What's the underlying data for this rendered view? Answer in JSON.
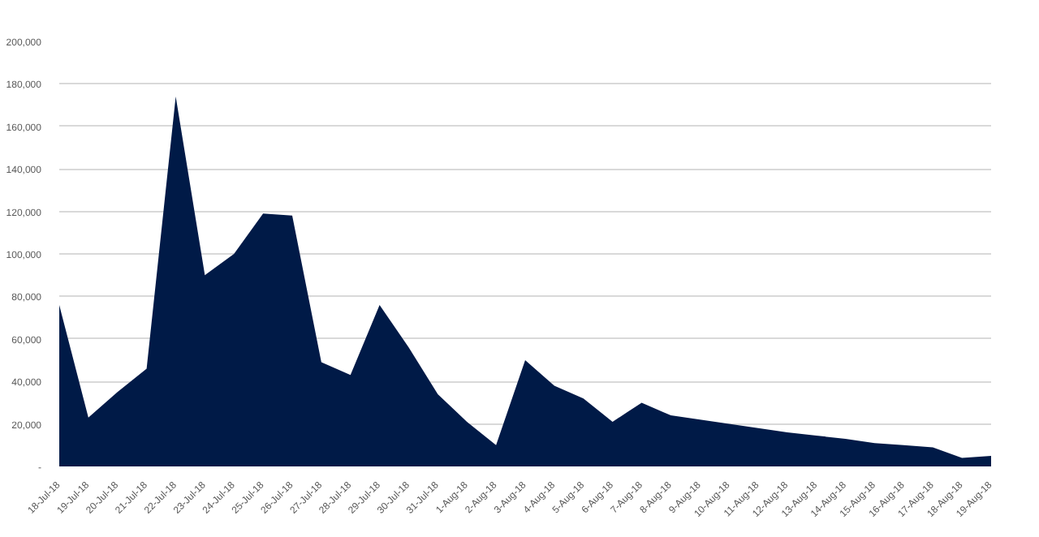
{
  "chart_data": {
    "type": "area",
    "categories": [
      "18-Jul-18",
      "19-Jul-18",
      "20-Jul-18",
      "21-Jul-18",
      "22-Jul-18",
      "23-Jul-18",
      "24-Jul-18",
      "25-Jul-18",
      "26-Jul-18",
      "27-Jul-18",
      "28-Jul-18",
      "29-Jul-18",
      "30-Jul-18",
      "31-Jul-18",
      "1-Aug-18",
      "2-Aug-18",
      "3-Aug-18",
      "4-Aug-18",
      "5-Aug-18",
      "6-Aug-18",
      "7-Aug-18",
      "8-Aug-18",
      "9-Aug-18",
      "10-Aug-18",
      "11-Aug-18",
      "12-Aug-18",
      "13-Aug-18",
      "14-Aug-18",
      "15-Aug-18",
      "16-Aug-18",
      "17-Aug-18",
      "18-Aug-18",
      "19-Aug-18"
    ],
    "series": [
      {
        "color": "#001a47",
        "values": [
          76000,
          23000,
          35000,
          46000,
          174000,
          90000,
          100000,
          119000,
          118000,
          49000,
          43000,
          76000,
          56000,
          34000,
          21000,
          10000,
          50000,
          38000,
          32000,
          21000,
          30000,
          24000,
          22000,
          20000,
          18000,
          16000,
          14500,
          13000,
          11000,
          10000,
          9000,
          4000,
          5000
        ]
      }
    ],
    "ylim": [
      0,
      200000
    ],
    "yticks": [
      {
        "value": 0,
        "label": "-"
      },
      {
        "value": 20000,
        "label": "20,000"
      },
      {
        "value": 40000,
        "label": "40,000"
      },
      {
        "value": 60000,
        "label": "60,000"
      },
      {
        "value": 80000,
        "label": "80,000"
      },
      {
        "value": 100000,
        "label": "100,000"
      },
      {
        "value": 120000,
        "label": "120,000"
      },
      {
        "value": 140000,
        "label": "140,000"
      },
      {
        "value": 160000,
        "label": "160,000"
      },
      {
        "value": 180000,
        "label": "180,000"
      },
      {
        "value": 200000,
        "label": "200,000"
      }
    ],
    "grid": "y"
  }
}
